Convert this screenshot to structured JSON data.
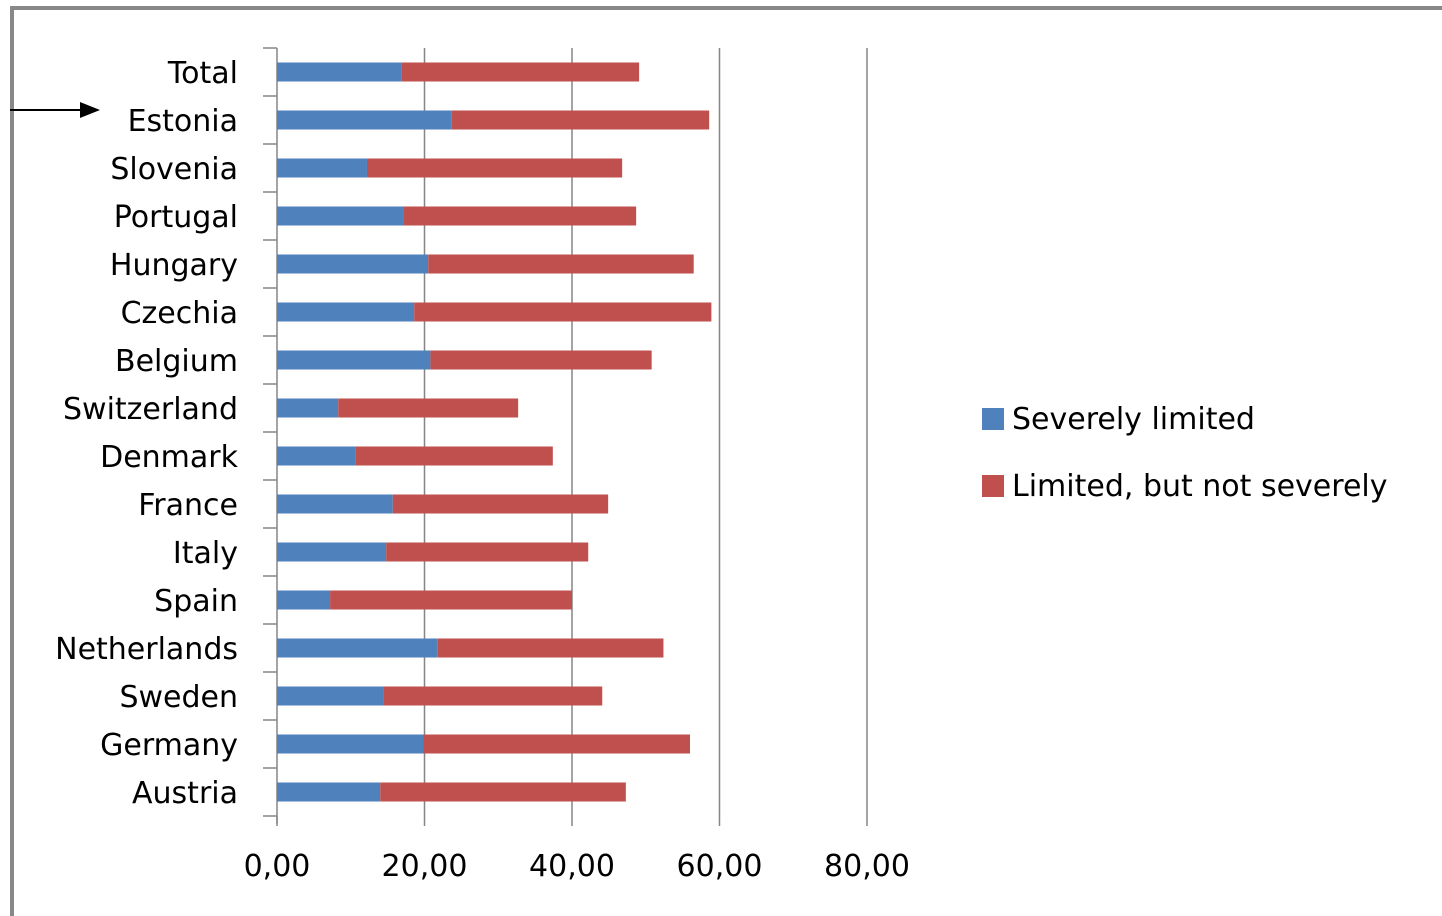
{
  "chart_data": {
    "type": "bar",
    "orientation": "horizontal",
    "stacked": true,
    "categories": [
      "Total",
      "Estonia",
      "Slovenia",
      "Portugal",
      "Hungary",
      "Czechia",
      "Belgium",
      "Switzerland",
      "Denmark",
      "France",
      "Italy",
      "Spain",
      "Netherlands",
      "Sweden",
      "Germany",
      "Austria"
    ],
    "series": [
      {
        "name": "Severely limited",
        "color": "#4F81BD",
        "values": [
          16.9,
          23.7,
          12.2,
          17.1,
          20.5,
          18.6,
          20.8,
          8.3,
          10.6,
          15.7,
          14.8,
          7.2,
          21.8,
          14.5,
          19.8,
          14.0
        ]
      },
      {
        "name": "Limited, but not severely",
        "color": "#C0504D",
        "values": [
          32.2,
          34.9,
          34.6,
          31.6,
          36.0,
          40.3,
          30.0,
          24.4,
          26.8,
          29.2,
          27.4,
          32.8,
          30.6,
          29.6,
          36.2,
          33.3
        ]
      }
    ],
    "x_ticks": [
      "0,00",
      "20,00",
      "40,00",
      "60,00",
      "80,00"
    ],
    "xlim": [
      0,
      80
    ],
    "grid": "vertical major gridlines",
    "legend_position": "right",
    "annotation": "arrow pointing to Estonia"
  }
}
